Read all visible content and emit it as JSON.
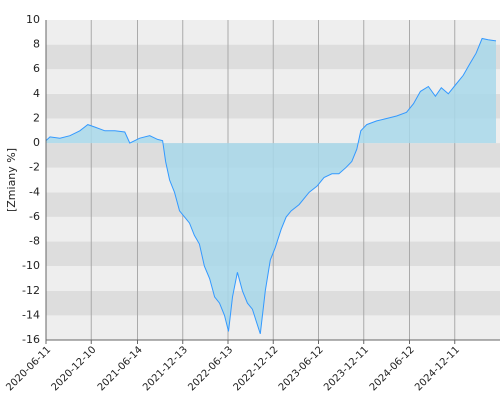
{
  "chart_data": {
    "type": "area",
    "y_label": "[Zmiany %]",
    "x": [
      "2020-06-11",
      "2020-06-27",
      "2020-08-06",
      "2020-09-15",
      "2020-10-25",
      "2020-11-26",
      "2020-12-25",
      "2021-02-03",
      "2021-03-15",
      "2021-04-24",
      "2021-05-14",
      "2021-06-23",
      "2021-08-02",
      "2021-09-03",
      "2021-09-23",
      "2021-10-05",
      "2021-10-21",
      "2021-11-10",
      "2021-11-30",
      "2021-12-20",
      "2022-01-09",
      "2022-01-29",
      "2022-02-18",
      "2022-03-10",
      "2022-03-31",
      "2022-04-20",
      "2022-05-10",
      "2022-05-30",
      "2022-06-15",
      "2022-07-01",
      "2022-07-21",
      "2022-08-10",
      "2022-08-30",
      "2022-09-19",
      "2022-10-05",
      "2022-10-21",
      "2022-11-10",
      "2022-11-30",
      "2022-12-20",
      "2023-01-13",
      "2023-02-02",
      "2023-02-22",
      "2023-03-26",
      "2023-05-05",
      "2023-06-06",
      "2023-07-04",
      "2023-08-05",
      "2023-09-02",
      "2023-09-30",
      "2023-10-24",
      "2023-11-13",
      "2023-11-29",
      "2023-12-23",
      "2024-02-01",
      "2024-03-12",
      "2024-04-21",
      "2024-05-31",
      "2024-06-28",
      "2024-07-26",
      "2024-08-27",
      "2024-09-24",
      "2024-10-18",
      "2024-11-15",
      "2024-12-17",
      "2025-01-14",
      "2025-02-11",
      "2025-03-07",
      "2025-03-31",
      "2025-04-24",
      "2025-05-26"
    ],
    "series": [
      {
        "color": "#3399ff",
        "fill": "#a8d8ea",
        "values": [
          0.2,
          0.5,
          0.4,
          0.6,
          1.0,
          1.5,
          1.3,
          1.0,
          1.0,
          0.9,
          0.0,
          0.4,
          0.6,
          0.3,
          0.2,
          -1.5,
          -3,
          -4,
          -5.5,
          -6,
          -6.5,
          -7.5,
          -8.2,
          -10,
          -11,
          -12.5,
          -13,
          -14,
          -15.3,
          -12.5,
          -10.5,
          -12,
          -13,
          -13.5,
          -14.5,
          -15.5,
          -12,
          -9.5,
          -8.5,
          -7,
          -6,
          -5.5,
          -5,
          -4,
          -3.5,
          -2.8,
          -2.5,
          -2.5,
          -2,
          -1.5,
          -0.5,
          1.0,
          1.5,
          1.8,
          2.0,
          2.2,
          2.5,
          3.2,
          4.2,
          4.6,
          3.8,
          4.5,
          4.0,
          4.8,
          5.5,
          6.5,
          7.3,
          8.5,
          8.4,
          8.3
        ]
      }
    ],
    "xlim": [
      "2020-06-11",
      "2025-06-11"
    ],
    "xticks": [
      "2020-06-11",
      "2020-12-10",
      "2021-06-14",
      "2021-12-13",
      "2022-06-13",
      "2022-12-12",
      "2023-06-12",
      "2023-12-11",
      "2024-06-12",
      "2024-12-11"
    ],
    "ylim": [
      -16,
      10
    ],
    "yticks": [
      -16,
      -14,
      -12,
      -10,
      -8,
      -6,
      -4,
      -2,
      0,
      2,
      4,
      6,
      8,
      10
    ],
    "grid": true
  }
}
